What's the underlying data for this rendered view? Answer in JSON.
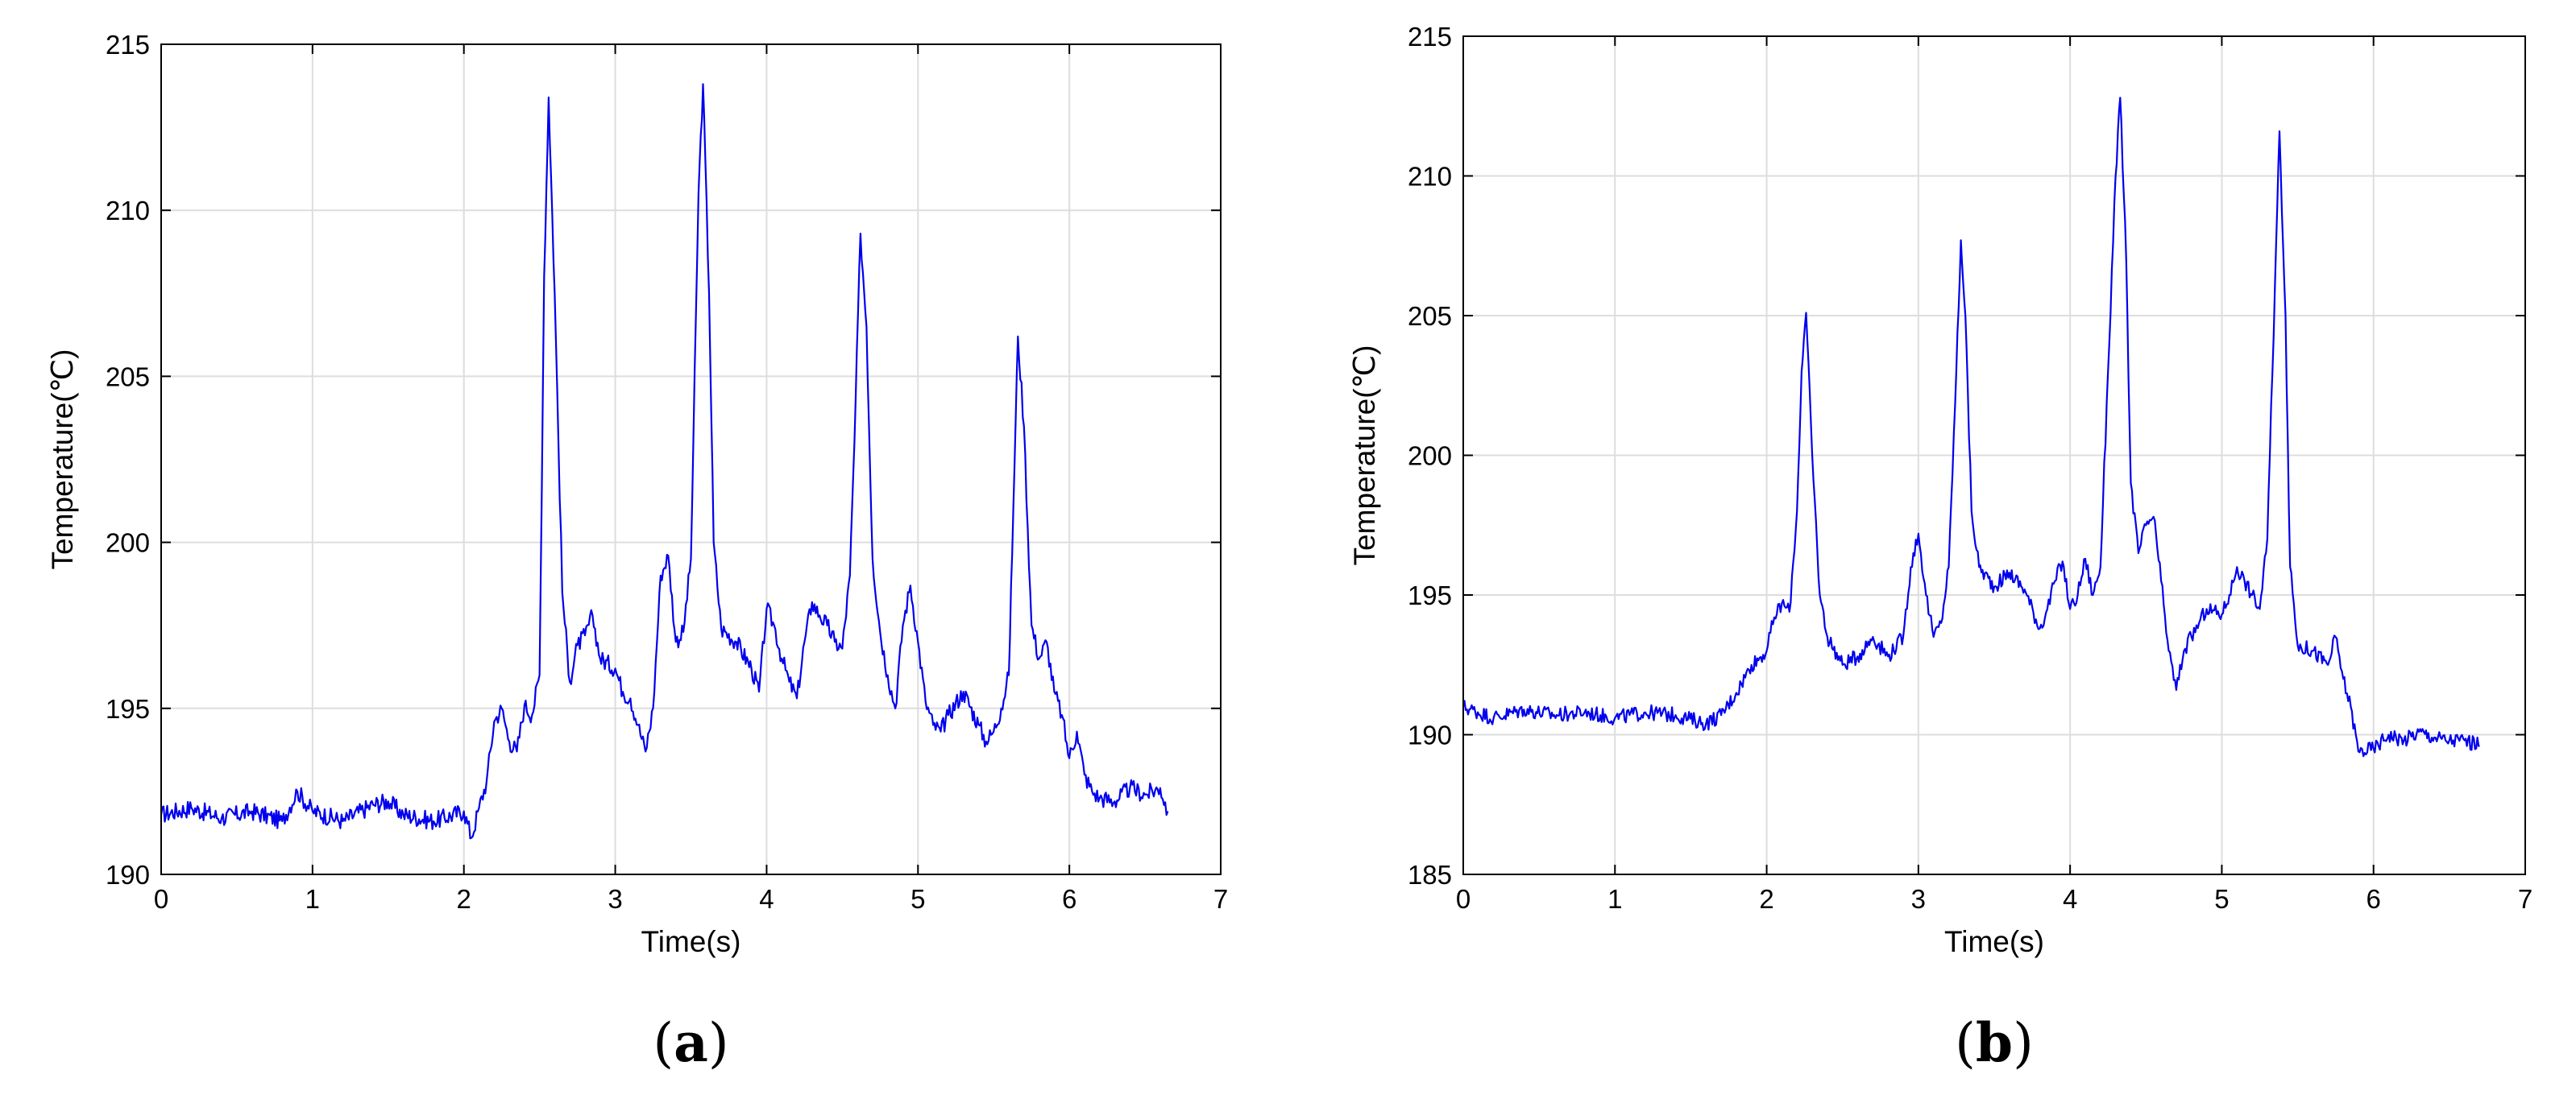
{
  "chart_data": [
    {
      "type": "line",
      "panel_label": "a",
      "xlabel": "Time(s)",
      "ylabel": "Temperature(℃)",
      "xlim": [
        0,
        7
      ],
      "ylim": [
        190,
        215
      ],
      "xticks": [
        "0",
        "1",
        "2",
        "3",
        "4",
        "5",
        "6",
        "7"
      ],
      "yticks": [
        "190",
        "195",
        "200",
        "205",
        "210",
        "215"
      ],
      "grid": true,
      "color": "#0000ee",
      "series": [
        {
          "x": [
            0,
            0.2,
            0.4,
            0.6,
            0.8,
            0.9,
            1.0,
            1.2,
            1.4,
            1.5,
            1.6,
            1.8,
            2.0,
            2.05,
            2.1,
            2.15,
            2.2,
            2.25,
            2.3,
            2.35,
            2.4,
            2.45,
            2.5,
            2.53,
            2.56,
            2.6,
            2.65,
            2.7,
            2.75,
            2.8,
            2.85,
            2.9,
            3.0,
            3.05,
            3.1,
            3.15,
            3.2,
            3.25,
            3.3,
            3.35,
            3.4,
            3.45,
            3.5,
            3.55,
            3.58,
            3.62,
            3.65,
            3.7,
            3.8,
            3.9,
            3.95,
            4.0,
            4.05,
            4.1,
            4.15,
            4.2,
            4.25,
            4.3,
            4.35,
            4.4,
            4.45,
            4.5,
            4.55,
            4.58,
            4.62,
            4.66,
            4.7,
            4.75,
            4.8,
            4.85,
            4.9,
            4.95,
            5.0,
            5.05,
            5.1,
            5.15,
            5.2,
            5.3,
            5.4,
            5.45,
            5.5,
            5.55,
            5.6,
            5.63,
            5.66,
            5.7,
            5.75,
            5.8,
            5.85,
            5.9,
            5.95,
            6.0,
            6.05,
            6.1,
            6.15,
            6.2,
            6.3,
            6.4,
            6.5,
            6.6,
            6.65
          ],
          "y": [
            191.8,
            192.0,
            191.7,
            191.9,
            191.6,
            192.5,
            191.9,
            191.6,
            192.1,
            192.2,
            191.8,
            191.6,
            191.9,
            191.1,
            192.0,
            192.8,
            194.6,
            195.0,
            194.0,
            193.7,
            195.1,
            194.8,
            196.0,
            208.0,
            213.4,
            207.5,
            198.5,
            195.8,
            196.9,
            197.2,
            197.8,
            196.5,
            196.2,
            195.5,
            195.3,
            194.5,
            193.7,
            195.0,
            199.0,
            199.6,
            197.0,
            197.3,
            199.5,
            210.5,
            213.8,
            207.5,
            200.0,
            197.4,
            197.0,
            196.2,
            195.5,
            198.0,
            197.5,
            196.5,
            195.8,
            195.3,
            197.0,
            198.2,
            197.8,
            197.5,
            197.0,
            196.8,
            199.0,
            203.0,
            209.3,
            206.5,
            199.5,
            197.3,
            196.0,
            195.0,
            197.5,
            198.7,
            197.0,
            195.2,
            194.5,
            194.3,
            194.8,
            195.5,
            194.5,
            194.0,
            194.3,
            195.0,
            196.0,
            201.0,
            206.2,
            203.5,
            197.5,
            196.5,
            197.0,
            195.5,
            194.8,
            193.5,
            194.3,
            193.0,
            192.5,
            192.3,
            192.2,
            192.6,
            192.4,
            192.6,
            191.9
          ]
        }
      ]
    },
    {
      "type": "line",
      "panel_label": "b",
      "xlabel": "Time(s)",
      "ylabel": "Temperature(℃)",
      "xlim": [
        0,
        7
      ],
      "ylim": [
        185,
        215
      ],
      "xticks": [
        "0",
        "1",
        "2",
        "3",
        "4",
        "5",
        "6",
        "7"
      ],
      "yticks": [
        "185",
        "190",
        "195",
        "200",
        "205",
        "210",
        "215"
      ],
      "grid": true,
      "color": "#0000ee",
      "series": [
        {
          "x": [
            0,
            0.2,
            0.4,
            0.6,
            0.8,
            1.0,
            1.2,
            1.4,
            1.6,
            1.7,
            1.8,
            1.9,
            2.0,
            2.05,
            2.1,
            2.15,
            2.2,
            2.23,
            2.26,
            2.3,
            2.35,
            2.4,
            2.5,
            2.6,
            2.7,
            2.8,
            2.9,
            2.95,
            3.0,
            3.05,
            3.1,
            3.15,
            3.2,
            3.25,
            3.28,
            3.31,
            3.35,
            3.4,
            3.5,
            3.6,
            3.7,
            3.8,
            3.85,
            3.9,
            3.95,
            4.0,
            4.05,
            4.1,
            4.15,
            4.2,
            4.25,
            4.3,
            4.33,
            4.37,
            4.4,
            4.45,
            4.5,
            4.55,
            4.6,
            4.65,
            4.7,
            4.75,
            4.8,
            4.85,
            4.9,
            5.0,
            5.05,
            5.1,
            5.15,
            5.2,
            5.25,
            5.3,
            5.35,
            5.38,
            5.42,
            5.45,
            5.5,
            5.6,
            5.7,
            5.75,
            5.8,
            5.85,
            5.9,
            6.0,
            6.1,
            6.2,
            6.3,
            6.4,
            6.5,
            6.6,
            6.7
          ],
          "y": [
            191.0,
            190.6,
            190.9,
            190.7,
            190.8,
            190.6,
            190.8,
            190.7,
            190.4,
            190.7,
            191.5,
            192.5,
            193.0,
            194.2,
            194.7,
            194.4,
            198.0,
            203.0,
            205.1,
            200.0,
            195.0,
            193.5,
            192.5,
            192.8,
            193.5,
            192.8,
            193.5,
            196.0,
            197.2,
            195.0,
            193.5,
            194.0,
            196.0,
            203.0,
            207.7,
            205.0,
            198.0,
            196.0,
            195.3,
            195.8,
            195.2,
            193.8,
            194.5,
            195.5,
            196.2,
            194.5,
            195.0,
            196.3,
            195.0,
            196.0,
            203.0,
            210.0,
            212.8,
            207.0,
            199.0,
            196.5,
            197.5,
            197.8,
            195.5,
            193.0,
            191.6,
            193.0,
            193.5,
            194.0,
            194.5,
            194.3,
            195.0,
            196.0,
            195.5,
            195.0,
            194.5,
            197.0,
            206.0,
            211.6,
            205.0,
            196.0,
            193.2,
            193.0,
            192.5,
            193.5,
            192.0,
            191.0,
            189.4,
            189.5,
            190.0,
            189.8,
            190.1,
            189.9,
            189.8,
            189.8,
            189.6
          ]
        }
      ]
    }
  ]
}
